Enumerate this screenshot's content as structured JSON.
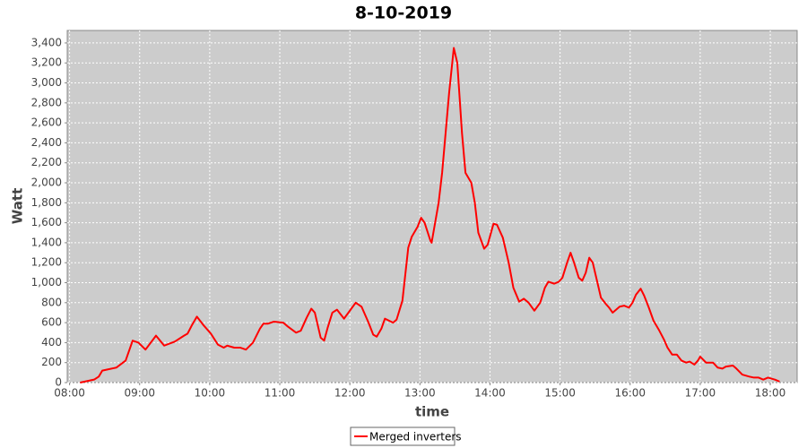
{
  "chart_data": {
    "type": "line",
    "title": "8-10-2019",
    "x_label": "time",
    "y_label": "Watt",
    "x": [
      "08:09",
      "08:17",
      "08:21",
      "08:25",
      "08:28",
      "08:32",
      "08:40",
      "08:48",
      "08:54",
      "08:59",
      "09:05",
      "09:14",
      "09:21",
      "09:30",
      "09:38",
      "09:41",
      "09:45",
      "09:49",
      "09:55",
      "10:01",
      "10:07",
      "10:12",
      "10:15",
      "10:21",
      "10:26",
      "10:31",
      "10:37",
      "10:43",
      "10:46",
      "10:50",
      "10:55",
      "11:03",
      "11:07",
      "11:14",
      "11:18",
      "11:23",
      "11:27",
      "11:30",
      "11:35",
      "11:38",
      "11:41",
      "11:45",
      "11:49",
      "11:55",
      "12:00",
      "12:05",
      "12:10",
      "12:16",
      "12:20",
      "12:23",
      "12:27",
      "12:30",
      "12:37",
      "12:40",
      "12:45",
      "12:50",
      "12:53",
      "12:58",
      "13:01",
      "13:04",
      "13:09",
      "13:10",
      "13:13",
      "13:16",
      "13:19",
      "13:25",
      "13:29",
      "13:32",
      "13:36",
      "13:39",
      "13:44",
      "13:47",
      "13:50",
      "13:55",
      "13:58",
      "14:03",
      "14:06",
      "14:11",
      "14:16",
      "14:20",
      "14:25",
      "14:29",
      "14:33",
      "14:38",
      "14:43",
      "14:47",
      "14:50",
      "14:55",
      "14:59",
      "15:02",
      "15:06",
      "15:09",
      "15:12",
      "15:16",
      "15:19",
      "15:22",
      "15:25",
      "15:28",
      "15:32",
      "15:35",
      "15:39",
      "15:42",
      "15:45",
      "15:51",
      "15:55",
      "15:59",
      "16:02",
      "16:05",
      "16:09",
      "16:12",
      "16:16",
      "16:20",
      "16:25",
      "16:29",
      "16:32",
      "16:36",
      "16:40",
      "16:44",
      "16:48",
      "16:51",
      "16:55",
      "16:58",
      "17:00",
      "17:05",
      "17:08",
      "17:11",
      "17:15",
      "17:19",
      "17:22",
      "17:28",
      "17:31",
      "17:36",
      "17:42",
      "17:46",
      "17:50",
      "17:54",
      "17:58",
      "18:04",
      "18:08"
    ],
    "series": [
      {
        "name": "Merged inverters",
        "color": "#ff0000",
        "values": [
          0,
          20,
          30,
          60,
          120,
          130,
          150,
          220,
          420,
          400,
          330,
          470,
          370,
          410,
          470,
          490,
          580,
          660,
          570,
          490,
          380,
          350,
          370,
          350,
          350,
          330,
          400,
          540,
          590,
          590,
          610,
          600,
          560,
          500,
          520,
          650,
          740,
          700,
          450,
          420,
          550,
          700,
          730,
          640,
          720,
          800,
          760,
          600,
          480,
          460,
          540,
          640,
          600,
          630,
          820,
          1350,
          1460,
          1560,
          1650,
          1600,
          1420,
          1400,
          1600,
          1800,
          2100,
          2900,
          3350,
          3200,
          2500,
          2100,
          2000,
          1800,
          1500,
          1340,
          1380,
          1590,
          1580,
          1450,
          1200,
          950,
          810,
          840,
          800,
          720,
          800,
          950,
          1010,
          990,
          1010,
          1050,
          1200,
          1300,
          1200,
          1050,
          1020,
          1100,
          1250,
          1200,
          1000,
          850,
          790,
          750,
          700,
          760,
          770,
          750,
          800,
          880,
          940,
          870,
          750,
          620,
          520,
          430,
          350,
          280,
          280,
          220,
          200,
          210,
          180,
          220,
          260,
          200,
          200,
          200,
          150,
          140,
          160,
          170,
          140,
          80,
          60,
          50,
          50,
          30,
          50,
          30,
          10
        ]
      }
    ],
    "xlim": [
      "07:58",
      "18:23"
    ],
    "xticks": [
      "08:00",
      "09:00",
      "10:00",
      "11:00",
      "12:00",
      "13:00",
      "14:00",
      "15:00",
      "16:00",
      "17:00",
      "18:00"
    ],
    "ylim": [
      0,
      3525
    ],
    "yticks": [
      0,
      200,
      400,
      600,
      800,
      {
        "value": 1000,
        "label": "1,000"
      },
      {
        "value": 1200,
        "label": "1,200"
      },
      {
        "value": 1400,
        "label": "1,400"
      },
      {
        "value": 1600,
        "label": "1,600"
      },
      {
        "value": 1800,
        "label": "1,800"
      },
      {
        "value": 2000,
        "label": "2,000"
      },
      {
        "value": 2200,
        "label": "2,200"
      },
      {
        "value": 2400,
        "label": "2,400"
      },
      {
        "value": 2600,
        "label": "2,600"
      },
      {
        "value": 2800,
        "label": "2,800"
      },
      {
        "value": 3000,
        "label": "3,000"
      },
      {
        "value": 3200,
        "label": "3,200"
      },
      {
        "value": 3400,
        "label": "3,400"
      }
    ],
    "grid": true
  }
}
